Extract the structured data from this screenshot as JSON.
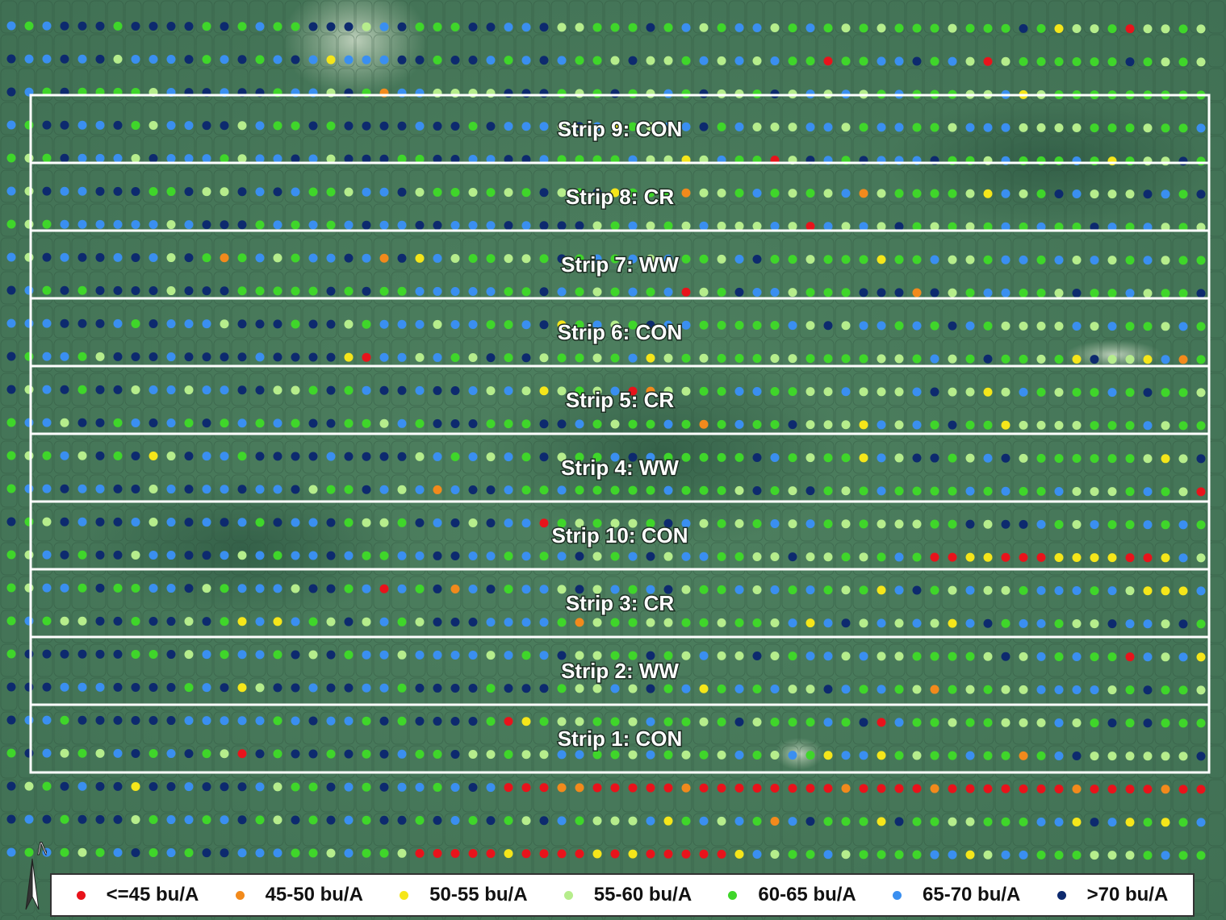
{
  "strips": [
    {
      "label": "Strip 9: CON"
    },
    {
      "label": "Strip 8: CR"
    },
    {
      "label": "Strip 7: WW"
    },
    {
      "label": "Strip 6: CON"
    },
    {
      "label": "Strip 5: CR"
    },
    {
      "label": "Strip 4: WW"
    },
    {
      "label": "Strip 10: CON"
    },
    {
      "label": "Strip 3: CR"
    },
    {
      "label": "Strip 2: WW"
    },
    {
      "label": "Strip 1: CON"
    }
  ],
  "legend": {
    "items": [
      {
        "label": "<=45 bu/A",
        "color": "#e8131b"
      },
      {
        "label": "45-50 bu/A",
        "color": "#f28a1c"
      },
      {
        "label": "50-55 bu/A",
        "color": "#f5e61a"
      },
      {
        "label": "55-60 bu/A",
        "color": "#b6ed8c"
      },
      {
        "label": "60-65 bu/A",
        "color": "#3fd62a"
      },
      {
        "label": "65-70 bu/A",
        "color": "#3a8ff0"
      },
      {
        "label": ">70 bu/A",
        "color": "#0d2a6e"
      }
    ]
  },
  "north_arrow": {
    "label": "N"
  },
  "colors": {
    "background": "#4a7a5c",
    "strip_outline": "#ffffff"
  }
}
